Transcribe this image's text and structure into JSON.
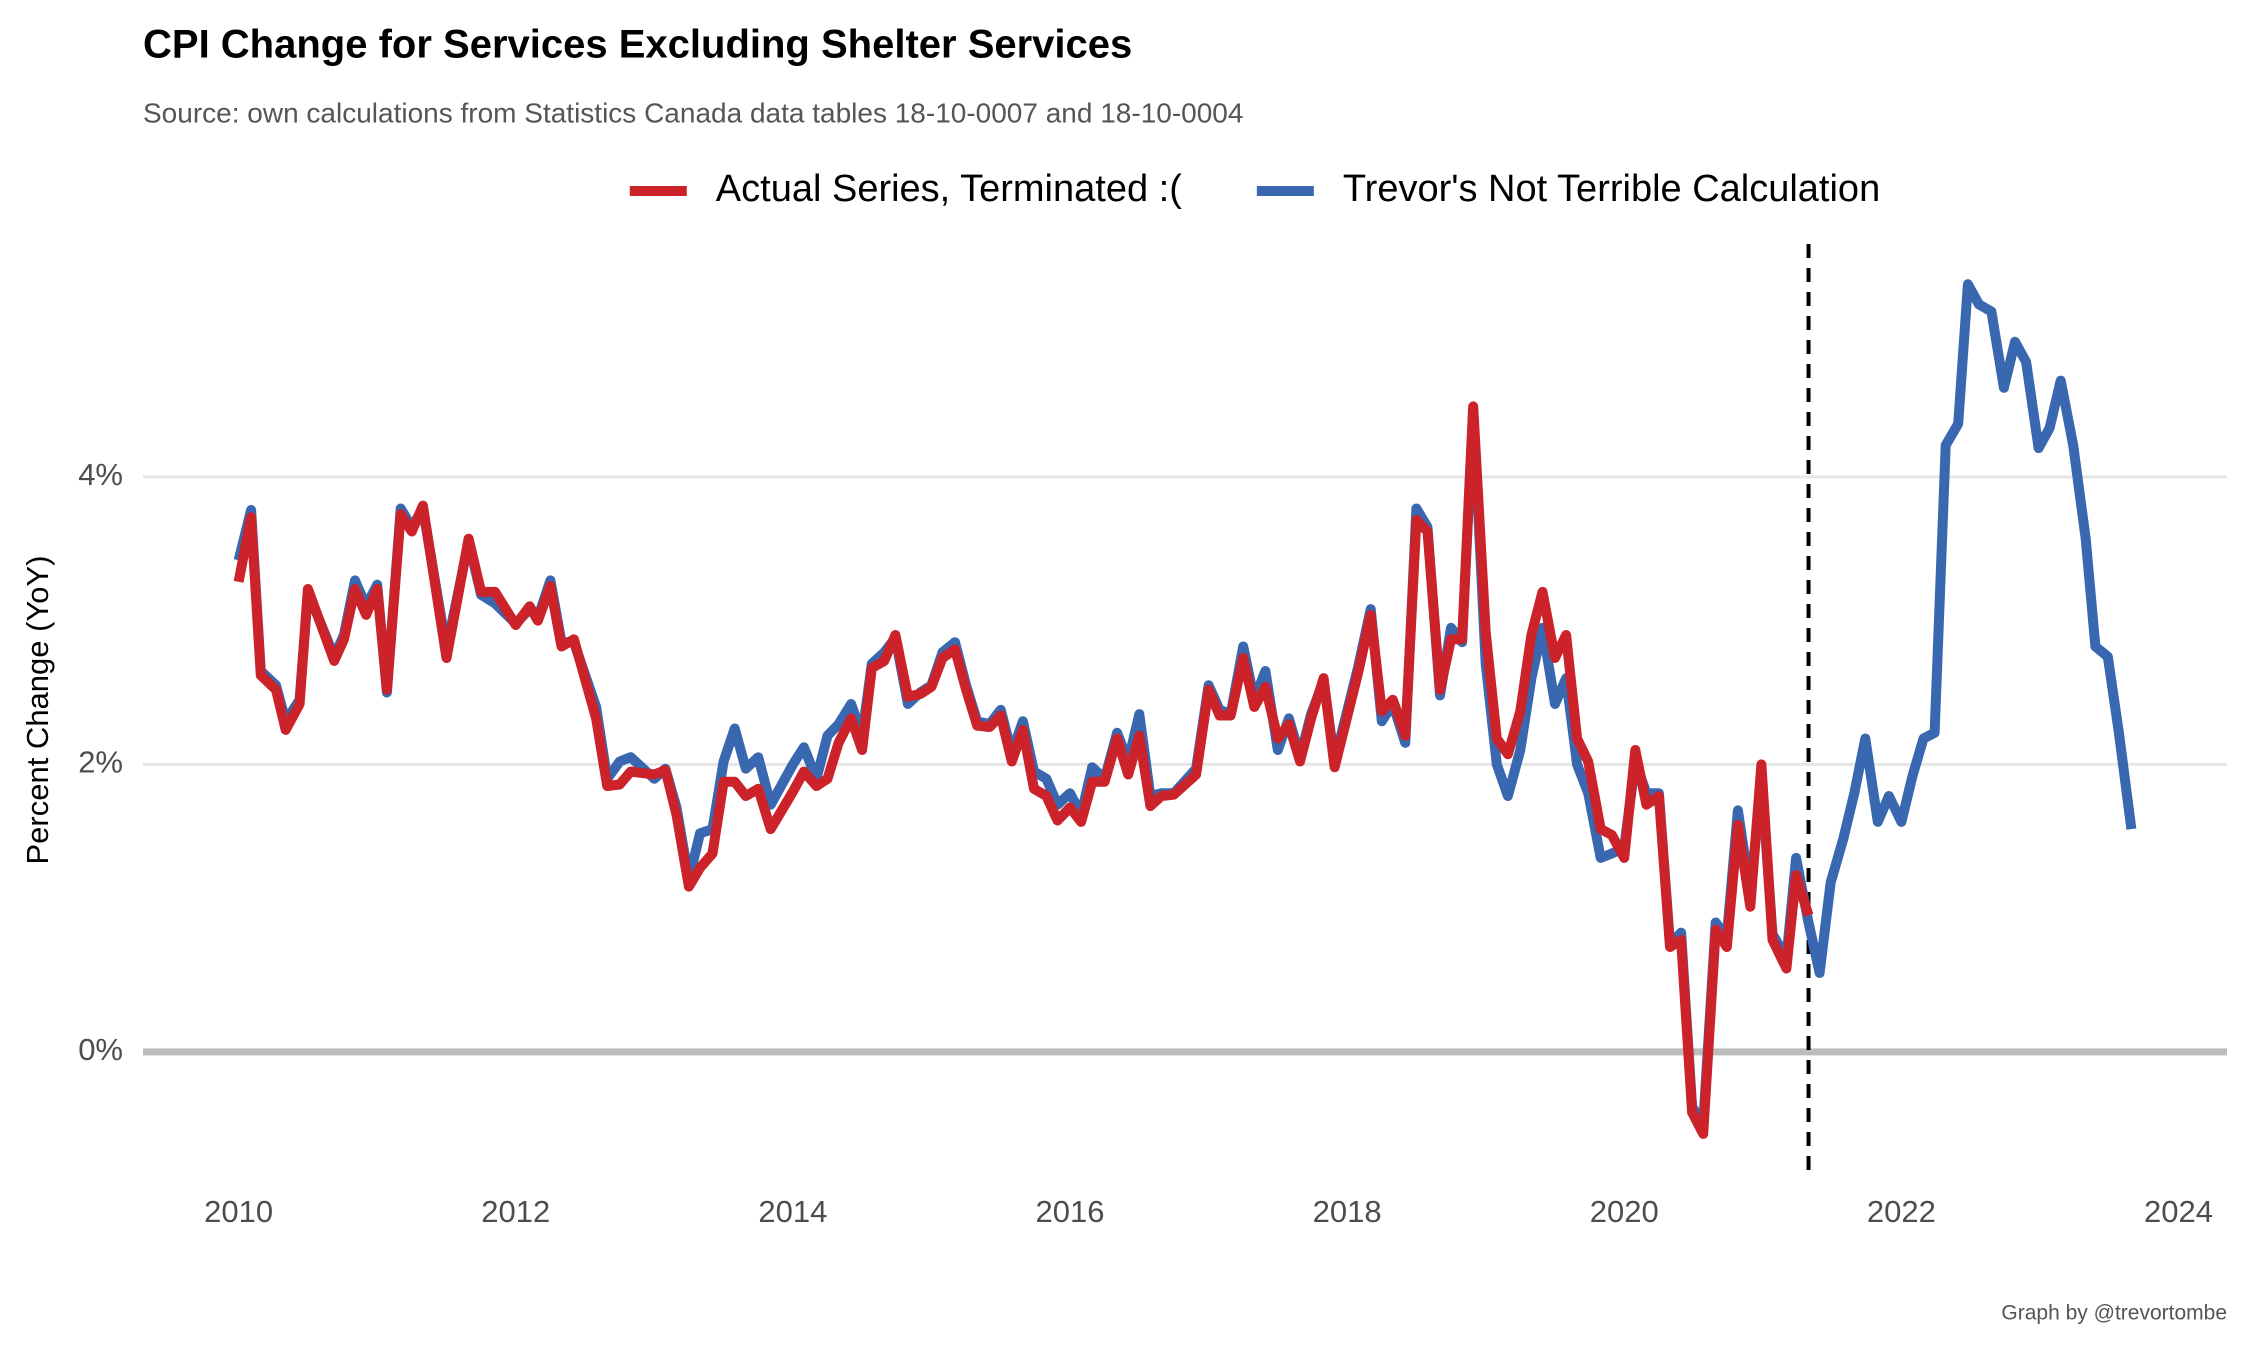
{
  "chart_data": {
    "type": "line",
    "title": "CPI Change for Services Excluding Shelter Services",
    "subtitle": "Source: own calculations from Statistics Canada data tables 18-10-0007 and 18-10-0004",
    "y_label": "Percent Change (YoY)",
    "caption": "Graph by @trevortombe",
    "grid": true,
    "zero_line": true,
    "vline": 2021.33,
    "legend_position": "top",
    "xlim": [
      2009.31,
      2024.35
    ],
    "xticks": [
      2010,
      2012,
      2014,
      2016,
      2018,
      2020,
      2022,
      2024
    ],
    "ylim": [
      -0.87,
      5.62
    ],
    "yticks": [
      {
        "value": 0,
        "label": "0%"
      },
      {
        "value": 2,
        "label": "2%"
      },
      {
        "value": 4,
        "label": "4%"
      }
    ],
    "x": [
      2010.0,
      2010.09,
      2010.16,
      2010.27,
      2010.34,
      2010.44,
      2010.5,
      2010.69,
      2010.76,
      2010.84,
      2010.92,
      2011.0,
      2011.07,
      2011.17,
      2011.25,
      2011.33,
      2011.5,
      2011.66,
      2011.75,
      2011.85,
      2012.0,
      2012.1,
      2012.16,
      2012.25,
      2012.33,
      2012.42,
      2012.58,
      2012.66,
      2012.75,
      2012.83,
      2013.0,
      2013.08,
      2013.16,
      2013.25,
      2013.33,
      2013.42,
      2013.5,
      2013.58,
      2013.66,
      2013.75,
      2013.84,
      2014.0,
      2014.08,
      2014.17,
      2014.25,
      2014.33,
      2014.42,
      2014.5,
      2014.57,
      2014.66,
      2014.74,
      2014.83,
      2014.92,
      2015.0,
      2015.08,
      2015.17,
      2015.25,
      2015.33,
      2015.42,
      2015.5,
      2015.58,
      2015.66,
      2015.74,
      2015.83,
      2015.91,
      2016.0,
      2016.08,
      2016.16,
      2016.25,
      2016.34,
      2016.42,
      2016.5,
      2016.58,
      2016.66,
      2016.75,
      2016.91,
      2017.0,
      2017.08,
      2017.16,
      2017.25,
      2017.33,
      2017.41,
      2017.5,
      2017.58,
      2017.66,
      2017.74,
      2017.83,
      2017.91,
      2018.08,
      2018.17,
      2018.25,
      2018.33,
      2018.42,
      2018.5,
      2018.58,
      2018.67,
      2018.75,
      2018.83,
      2018.91,
      2019.0,
      2019.08,
      2019.16,
      2019.25,
      2019.33,
      2019.41,
      2019.5,
      2019.58,
      2019.66,
      2019.74,
      2019.83,
      2019.91,
      2020.0,
      2020.08,
      2020.16,
      2020.25,
      2020.33,
      2020.41,
      2020.49,
      2020.57,
      2020.66,
      2020.74,
      2020.82,
      2020.91,
      2020.99,
      2021.07,
      2021.17,
      2021.24,
      2021.33,
      2021.41,
      2021.49,
      2021.58,
      2021.66,
      2021.74,
      2021.83,
      2021.91,
      2022.0,
      2022.08,
      2022.16,
      2022.24,
      2022.32,
      2022.41,
      2022.48,
      2022.56,
      2022.65,
      2022.74,
      2022.82,
      2022.9,
      2022.99,
      2023.07,
      2023.15,
      2023.24,
      2023.33,
      2023.4,
      2023.49,
      2023.57,
      2023.66
    ],
    "series": [
      {
        "name": "Actual Series, Terminated :(",
        "color": "#cc2229",
        "values": [
          3.27,
          3.72,
          2.62,
          2.52,
          2.24,
          2.42,
          3.22,
          2.72,
          2.87,
          3.22,
          3.04,
          3.22,
          2.52,
          3.74,
          3.62,
          3.8,
          2.74,
          3.57,
          3.2,
          3.2,
          2.97,
          3.1,
          3.0,
          3.24,
          2.82,
          2.87,
          2.32,
          1.85,
          1.86,
          1.95,
          1.93,
          1.96,
          1.65,
          1.15,
          1.28,
          1.38,
          1.88,
          1.88,
          1.78,
          1.83,
          1.55,
          1.81,
          1.95,
          1.85,
          1.9,
          2.15,
          2.32,
          2.1,
          2.67,
          2.72,
          2.9,
          2.47,
          2.49,
          2.54,
          2.74,
          2.8,
          2.52,
          2.27,
          2.26,
          2.34,
          2.02,
          2.24,
          1.83,
          1.78,
          1.61,
          1.7,
          1.6,
          1.88,
          1.88,
          2.18,
          1.93,
          2.2,
          1.71,
          1.78,
          1.79,
          1.93,
          2.52,
          2.34,
          2.34,
          2.74,
          2.4,
          2.54,
          2.18,
          2.28,
          2.02,
          2.32,
          2.6,
          1.98,
          2.64,
          3.04,
          2.37,
          2.45,
          2.2,
          3.7,
          3.62,
          2.52,
          2.87,
          2.87,
          4.49,
          2.92,
          2.18,
          2.07,
          2.37,
          2.9,
          3.2,
          2.74,
          2.9,
          2.18,
          2.02,
          1.55,
          1.51,
          1.35,
          2.1,
          1.72,
          1.78,
          0.73,
          0.78,
          -0.42,
          -0.57,
          0.85,
          0.73,
          1.58,
          1.01,
          2.0,
          0.78,
          0.58,
          1.23,
          0.95,
          null,
          null,
          null,
          null,
          null,
          null,
          null,
          null,
          null,
          null,
          null,
          null,
          null,
          null,
          null,
          null,
          null,
          null,
          null,
          null,
          null,
          null,
          null,
          null,
          null,
          null,
          null,
          null
        ]
      },
      {
        "name": "Trevor's Not Terrible Calculation",
        "color": "#3a68b0",
        "values": [
          3.42,
          3.77,
          2.65,
          2.55,
          2.3,
          2.45,
          3.2,
          2.75,
          2.9,
          3.28,
          3.1,
          3.25,
          2.5,
          3.78,
          3.65,
          3.78,
          2.8,
          3.55,
          3.18,
          3.12,
          2.98,
          3.08,
          3.02,
          3.28,
          2.85,
          2.85,
          2.4,
          1.9,
          2.02,
          2.05,
          1.9,
          1.97,
          1.7,
          1.2,
          1.52,
          1.55,
          2.02,
          2.25,
          1.97,
          2.05,
          1.72,
          2.0,
          2.12,
          1.9,
          2.2,
          2.28,
          2.42,
          2.2,
          2.7,
          2.78,
          2.88,
          2.42,
          2.5,
          2.55,
          2.78,
          2.85,
          2.55,
          2.3,
          2.28,
          2.38,
          2.08,
          2.3,
          1.95,
          1.9,
          1.72,
          1.8,
          1.65,
          1.98,
          1.9,
          2.22,
          2.02,
          2.35,
          1.78,
          1.8,
          1.8,
          1.97,
          2.55,
          2.38,
          2.35,
          2.82,
          2.45,
          2.65,
          2.1,
          2.32,
          2.05,
          2.35,
          2.58,
          2.02,
          2.68,
          3.08,
          2.3,
          2.42,
          2.15,
          3.78,
          3.65,
          2.48,
          2.95,
          2.85,
          4.47,
          2.7,
          2.0,
          1.78,
          2.1,
          2.6,
          2.95,
          2.42,
          2.6,
          2.0,
          1.8,
          1.35,
          1.38,
          1.42,
          2.02,
          1.8,
          1.8,
          0.75,
          0.83,
          -0.38,
          -0.5,
          0.9,
          0.8,
          1.68,
          1.1,
          1.9,
          0.82,
          0.65,
          1.35,
          0.9,
          0.55,
          1.18,
          1.48,
          1.8,
          2.18,
          1.6,
          1.78,
          1.6,
          1.92,
          2.18,
          2.22,
          4.22,
          4.37,
          5.34,
          5.2,
          5.15,
          4.62,
          4.94,
          4.8,
          4.2,
          4.34,
          4.67,
          4.22,
          3.57,
          2.82,
          2.75,
          2.22,
          1.55
        ]
      }
    ]
  }
}
